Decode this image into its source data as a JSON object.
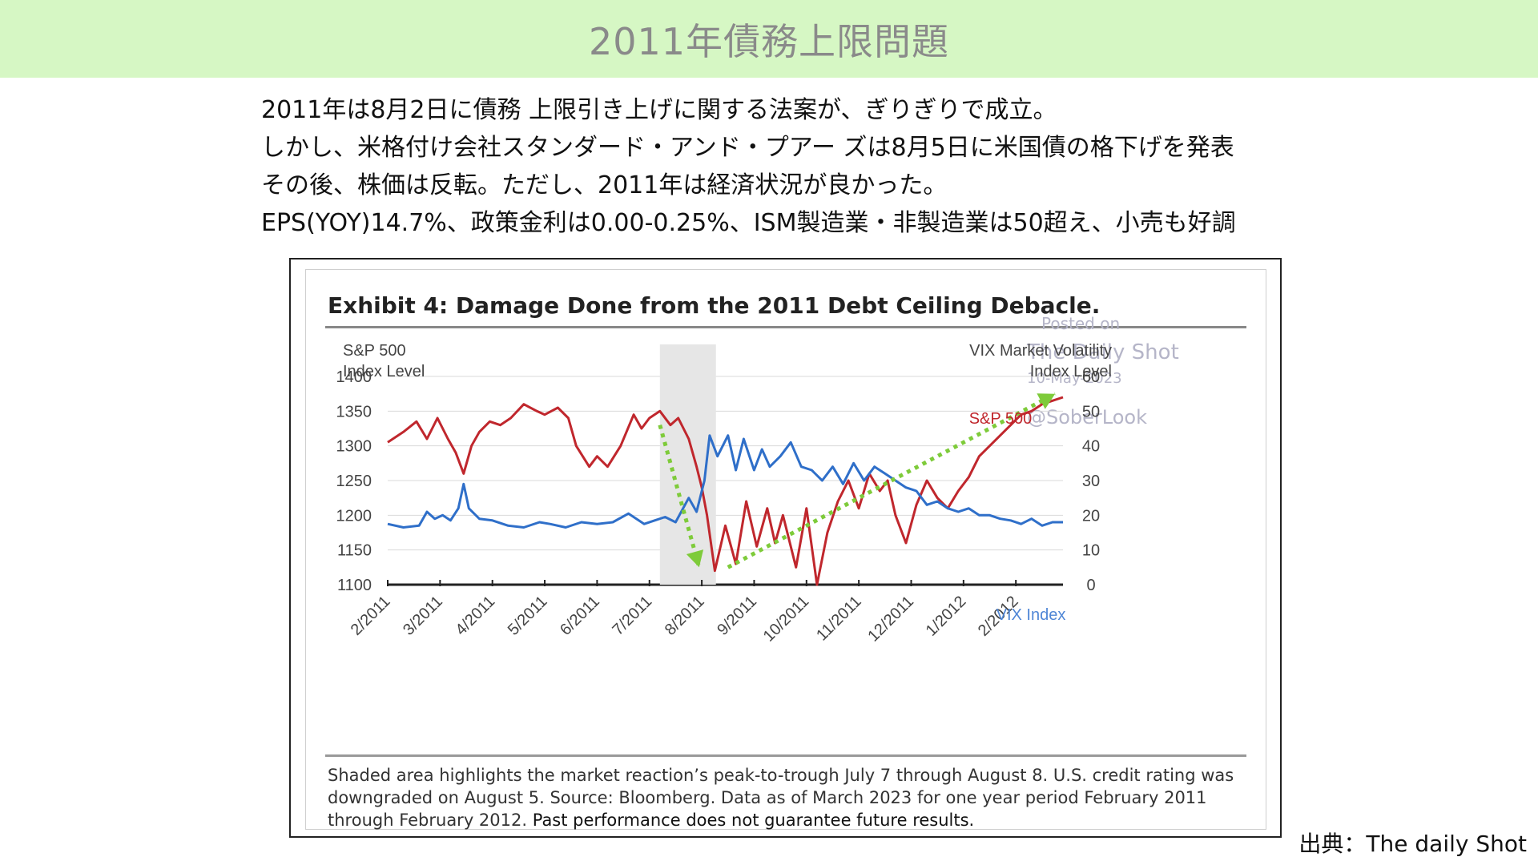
{
  "header": {
    "title": "2011年債務上限問題"
  },
  "bullets": [
    "2011年は8月2日に債務 上限引き上げに関する法案が、ぎりぎりで成立。",
    "しかし、米格付け会社スタンダード・アンド・プアー ズは8月5日に米国債の格下げを発表",
    "その後、株価は反転。ただし、2011年は経済状況が良かった。",
    "EPS(YOY)14.7%、政策金利は0.00-0.25%、ISM製造業・非製造業は50超え、小売も好調"
  ],
  "figure": {
    "watermark": {
      "line1": "Posted on",
      "line2": "The Daily Shot",
      "line3": "10-May-2023",
      "line4": "@SoberLook"
    },
    "caption_normal": "Shaded area highlights the market reaction’s peak-to-trough July 7 through August 8. U.S. credit rating was downgraded on August 5. Source: Bloomberg. Data as of March 2023 for one year period February 2011 through February 2012. ",
    "caption_bold": "Past performance does not guarantee future results."
  },
  "source": "出典：The daily Shot",
  "colors": {
    "sp500": "#c0272d",
    "vix": "#2f6fc9",
    "arrow": "#7ecb3a",
    "shade": "#e6e6e6"
  },
  "chart_data": {
    "type": "line",
    "title": "Exhibit 4: Damage Done from the 2011 Debt Ceiling Debacle.",
    "ylabel_left": [
      "S&P 500",
      "Index Level"
    ],
    "ylabel_right": [
      "VIX Market Volatility",
      "Index Level"
    ],
    "categories": [
      "2/2011",
      "3/2011",
      "4/2011",
      "5/2011",
      "6/2011",
      "7/2011",
      "8/2011",
      "9/2011",
      "10/2011",
      "11/2011",
      "12/2011",
      "1/2012",
      "2/2012"
    ],
    "x_range": [
      0,
      12.9
    ],
    "ylim_left": [
      1100,
      1400
    ],
    "yticks_left": [
      1100,
      1150,
      1200,
      1250,
      1300,
      1350,
      1400
    ],
    "ylim_right": [
      0,
      60
    ],
    "yticks_right": [
      0,
      10,
      20,
      30,
      40,
      50,
      60
    ],
    "grid": true,
    "shaded_range": [
      5.2,
      6.27
    ],
    "series": [
      {
        "name": "S&P 500",
        "axis": "left",
        "x": [
          0.0,
          0.3,
          0.55,
          0.75,
          0.95,
          1.15,
          1.3,
          1.45,
          1.6,
          1.75,
          1.95,
          2.15,
          2.35,
          2.6,
          2.85,
          3.0,
          3.25,
          3.45,
          3.6,
          3.85,
          4.0,
          4.2,
          4.45,
          4.7,
          4.85,
          5.0,
          5.2,
          5.4,
          5.55,
          5.75,
          5.9,
          6.0,
          6.1,
          6.25,
          6.45,
          6.65,
          6.85,
          7.05,
          7.25,
          7.4,
          7.55,
          7.8,
          8.0,
          8.2,
          8.4,
          8.6,
          8.8,
          9.0,
          9.2,
          9.4,
          9.55,
          9.7,
          9.9,
          10.1,
          10.3,
          10.5,
          10.7,
          10.9,
          11.1,
          11.3,
          11.5,
          11.7,
          11.9,
          12.1,
          12.3,
          12.5,
          12.7,
          12.9
        ],
        "y": [
          1305,
          1320,
          1335,
          1310,
          1340,
          1310,
          1290,
          1260,
          1300,
          1320,
          1335,
          1330,
          1340,
          1360,
          1350,
          1345,
          1355,
          1340,
          1300,
          1270,
          1285,
          1270,
          1300,
          1345,
          1325,
          1340,
          1350,
          1330,
          1340,
          1310,
          1270,
          1240,
          1200,
          1120,
          1185,
          1130,
          1220,
          1155,
          1210,
          1160,
          1200,
          1125,
          1210,
          1100,
          1175,
          1220,
          1250,
          1210,
          1260,
          1235,
          1250,
          1200,
          1160,
          1215,
          1250,
          1225,
          1210,
          1235,
          1255,
          1285,
          1300,
          1315,
          1330,
          1345,
          1350,
          1360,
          1365,
          1370
        ]
      },
      {
        "name": "VIX Index",
        "axis": "right",
        "x": [
          0.0,
          0.3,
          0.6,
          0.75,
          0.9,
          1.05,
          1.2,
          1.35,
          1.45,
          1.55,
          1.75,
          2.0,
          2.3,
          2.6,
          2.9,
          3.1,
          3.4,
          3.7,
          4.0,
          4.3,
          4.6,
          4.75,
          4.9,
          5.1,
          5.3,
          5.5,
          5.75,
          5.9,
          6.05,
          6.15,
          6.3,
          6.5,
          6.65,
          6.8,
          7.0,
          7.15,
          7.3,
          7.5,
          7.7,
          7.9,
          8.1,
          8.3,
          8.5,
          8.7,
          8.9,
          9.1,
          9.3,
          9.5,
          9.7,
          9.9,
          10.1,
          10.3,
          10.5,
          10.7,
          10.9,
          11.1,
          11.3,
          11.5,
          11.7,
          11.9,
          12.1,
          12.3,
          12.5,
          12.7,
          12.9
        ],
        "y": [
          17.5,
          16.5,
          17,
          21,
          19,
          20,
          18.5,
          22,
          29,
          22,
          19,
          18.5,
          17,
          16.5,
          18,
          17.5,
          16.5,
          18,
          17.5,
          18,
          20.5,
          19,
          17.5,
          18.5,
          19.5,
          18,
          25,
          21,
          30,
          43,
          37,
          43,
          33,
          42,
          33,
          39,
          34,
          37,
          41,
          34,
          33,
          30,
          34,
          29,
          35,
          30,
          34,
          32,
          30,
          28,
          27,
          23,
          24,
          22,
          21,
          22,
          20,
          20,
          19,
          18.5,
          17.5,
          19,
          17,
          18,
          18
        ]
      }
    ],
    "annotations": [
      "S&P 500",
      "VIX Index"
    ]
  }
}
